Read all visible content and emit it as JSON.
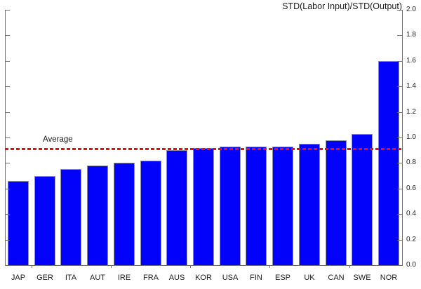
{
  "chart_data": {
    "type": "bar",
    "title": "STD(Labor Input)/STD(Output)",
    "categories": [
      "JAP",
      "GER",
      "ITA",
      "AUT",
      "IRE",
      "FRA",
      "AUS",
      "KOR",
      "USA",
      "FIN",
      "ESP",
      "UK",
      "CAN",
      "SWE",
      "NOR"
    ],
    "values": [
      0.66,
      0.7,
      0.75,
      0.78,
      0.8,
      0.82,
      0.9,
      0.92,
      0.93,
      0.93,
      0.93,
      0.95,
      0.98,
      1.03,
      1.6
    ],
    "ylim": [
      0.0,
      2.0
    ],
    "y_tick_step": 0.2,
    "y_tick_labels": [
      "0.0",
      "0.2",
      "0.4",
      "0.6",
      "0.8",
      "1.0",
      "1.2",
      "1.4",
      "1.6",
      "1.8",
      "2.0"
    ],
    "y_axis_side": "right",
    "grid": false,
    "legend": false,
    "bar_color": "#0202fa",
    "average_line": {
      "label": "Average",
      "value": 0.91,
      "color": "#f40b0b",
      "style": "dashed"
    }
  }
}
